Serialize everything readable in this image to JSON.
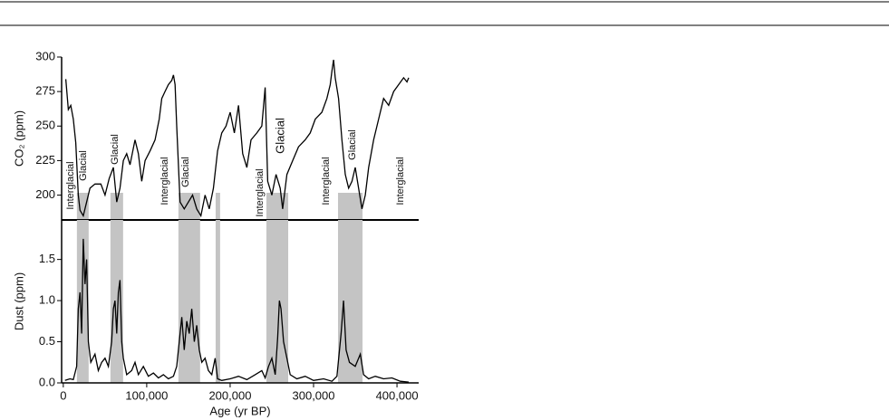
{
  "chart_data": [
    {
      "type": "line",
      "ylabel": "CO₂ (ppm)",
      "color": "#000000",
      "xlim": [
        -2000,
        426000
      ],
      "ylim": [
        182,
        300
      ],
      "yticks": [
        200,
        225,
        250,
        275,
        300
      ],
      "shaded_regions": [
        [
          16300,
          30400
        ],
        [
          56500,
          71700
        ],
        [
          138000,
          164000
        ],
        [
          182600,
          188000
        ],
        [
          243500,
          269600
        ],
        [
          329300,
          358700
        ]
      ],
      "annotations": [
        "Interglacial",
        "Glacial",
        "Glacial",
        "Interglacial",
        "Glacial",
        "Interglacial",
        "Glacial",
        "Interglacial",
        "Glacial",
        "Interglacial"
      ],
      "x": [
        3000,
        6000,
        9000,
        12000,
        15000,
        18000,
        20000,
        24000,
        28000,
        32000,
        38000,
        45000,
        50000,
        55000,
        60000,
        64000,
        68000,
        72000,
        76000,
        80000,
        86000,
        90000,
        94000,
        98000,
        104000,
        110000,
        115000,
        118000,
        122000,
        126000,
        130000,
        132000,
        134000,
        136000,
        140000,
        145000,
        150000,
        155000,
        160000,
        165000,
        170000,
        175000,
        180000,
        185000,
        190000,
        195000,
        200000,
        205000,
        210000,
        215000,
        220000,
        225000,
        232000,
        238000,
        242000,
        245000,
        250000,
        255000,
        260000,
        263000,
        268000,
        275000,
        282000,
        290000,
        296000,
        302000,
        310000,
        316000,
        320000,
        322000,
        324000,
        326000,
        330000,
        334000,
        338000,
        342000,
        346000,
        350000,
        354000,
        358000,
        362000,
        366000,
        372000,
        378000,
        384000,
        390000,
        396000,
        402000,
        408000,
        412000,
        414000
      ],
      "values": [
        284,
        262,
        265,
        255,
        238,
        200,
        189,
        185,
        195,
        205,
        208,
        208,
        200,
        212,
        220,
        195,
        205,
        225,
        230,
        222,
        240,
        230,
        210,
        225,
        232,
        240,
        255,
        270,
        275,
        280,
        283,
        287,
        280,
        250,
        195,
        190,
        195,
        200,
        190,
        185,
        200,
        190,
        205,
        232,
        245,
        250,
        260,
        245,
        265,
        230,
        220,
        240,
        245,
        250,
        278,
        210,
        200,
        215,
        205,
        190,
        215,
        225,
        235,
        240,
        245,
        255,
        260,
        270,
        280,
        290,
        298,
        285,
        270,
        240,
        215,
        205,
        210,
        220,
        205,
        190,
        200,
        220,
        240,
        255,
        270,
        265,
        275,
        280,
        285,
        282,
        285
      ]
    },
    {
      "type": "line",
      "ylabel": "Dust (ppm)",
      "xlabel": "Age (yr BP)",
      "color": "#000000",
      "xlim": [
        -2000,
        426000
      ],
      "ylim": [
        0,
        1.98
      ],
      "yticks": [
        {
          "value": 0,
          "label": "0.0"
        },
        0.5,
        {
          "value": 1,
          "label": "1.0"
        },
        1.5
      ],
      "xticks": [
        0,
        {
          "value": 100000,
          "label": "100,000"
        },
        {
          "value": 200000,
          "label": "200,000"
        },
        {
          "value": 300000,
          "label": "300,000"
        },
        {
          "value": 400000,
          "label": "400,000"
        }
      ],
      "shaded_regions": [
        [
          16300,
          30400
        ],
        [
          56500,
          71700
        ],
        [
          138000,
          164000
        ],
        [
          182600,
          188000
        ],
        [
          243500,
          269600
        ],
        [
          329300,
          358700
        ]
      ],
      "x": [
        2000,
        8000,
        12000,
        16000,
        18000,
        20000,
        22000,
        24000,
        26000,
        28000,
        30000,
        33000,
        38000,
        42000,
        46000,
        50000,
        54000,
        58000,
        60000,
        62000,
        64000,
        66000,
        68000,
        70000,
        72000,
        76000,
        82000,
        86000,
        90000,
        96000,
        102000,
        108000,
        114000,
        120000,
        126000,
        132000,
        136000,
        139000,
        142000,
        145000,
        148000,
        151000,
        154000,
        157000,
        160000,
        163000,
        166000,
        170000,
        174000,
        178000,
        182000,
        185000,
        190000,
        200000,
        210000,
        220000,
        230000,
        238000,
        242000,
        246000,
        250000,
        254000,
        257000,
        259000,
        261000,
        264000,
        268000,
        272000,
        280000,
        290000,
        300000,
        312000,
        322000,
        328000,
        333000,
        336000,
        339000,
        343000,
        350000,
        356000,
        360000,
        366000,
        374000,
        384000,
        394000,
        404000,
        414000
      ],
      "values": [
        0.03,
        0.05,
        0.04,
        0.2,
        0.9,
        1.1,
        0.6,
        1.75,
        1.2,
        1.5,
        0.5,
        0.25,
        0.35,
        0.15,
        0.25,
        0.3,
        0.2,
        0.5,
        0.9,
        1.0,
        0.6,
        1.1,
        1.25,
        0.5,
        0.3,
        0.1,
        0.15,
        0.25,
        0.1,
        0.2,
        0.08,
        0.12,
        0.06,
        0.1,
        0.05,
        0.08,
        0.2,
        0.5,
        0.8,
        0.4,
        0.75,
        0.6,
        0.9,
        0.5,
        0.7,
        0.4,
        0.25,
        0.3,
        0.15,
        0.1,
        0.3,
        0.05,
        0.03,
        0.05,
        0.08,
        0.04,
        0.1,
        0.15,
        0.06,
        0.2,
        0.3,
        0.1,
        0.55,
        1.0,
        0.9,
        0.5,
        0.3,
        0.1,
        0.05,
        0.08,
        0.03,
        0.05,
        0.02,
        0.08,
        0.6,
        1.0,
        0.4,
        0.25,
        0.2,
        0.35,
        0.1,
        0.05,
        0.08,
        0.05,
        0.06,
        0.02,
        0.01
      ]
    }
  ]
}
